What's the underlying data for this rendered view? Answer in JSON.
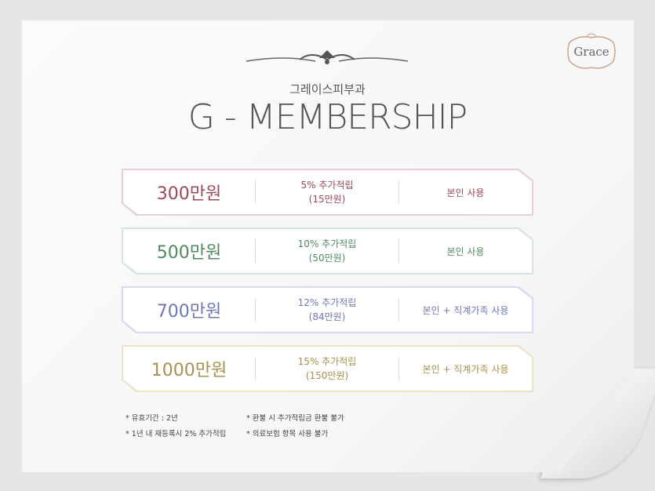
{
  "logo": {
    "text": "Grace"
  },
  "header": {
    "subtitle": "그레이스피부과",
    "title": "G - MEMBERSHIP"
  },
  "plans": [
    {
      "amount": "300만원",
      "bonus": "5% 추가적립",
      "bonus_amount": "(15만원)",
      "usage": "본인 사용",
      "color": "#9b4a55",
      "border": "#e8d0d4"
    },
    {
      "amount": "500만원",
      "bonus": "10% 추가적립",
      "bonus_amount": "(50만원)",
      "usage": "본인 사용",
      "color": "#4f8a5e",
      "border": "#d3e6da"
    },
    {
      "amount": "700만원",
      "bonus": "12% 추가적립",
      "bonus_amount": "(84만원)",
      "usage": "본인 + 직계가족 사용",
      "color": "#6e78b4",
      "border": "#d6d9ef"
    },
    {
      "amount": "1000만원",
      "bonus": "15% 추가적립",
      "bonus_amount": "(150만원)",
      "usage": "본인 + 직계가족 사용",
      "color": "#a8904f",
      "border": "#ece2c8"
    }
  ],
  "notes": {
    "left": [
      "* 유효기간 : 2년",
      "* 1년 내 재등록시 2% 추가적립"
    ],
    "right": [
      "* 환불 시 추가적립금 환불 불가",
      "* 의료보험 항목 사용 불가"
    ]
  }
}
